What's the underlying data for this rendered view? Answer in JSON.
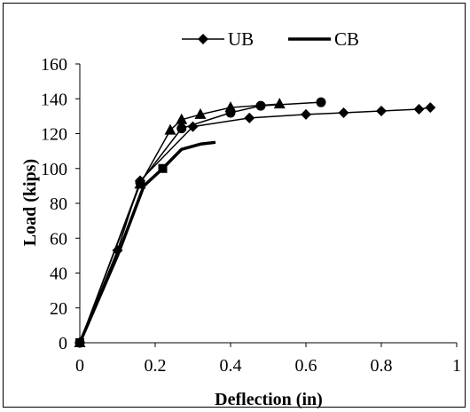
{
  "chart_data": {
    "type": "line",
    "xlabel": "Deflection (in)",
    "ylabel": "Load (kips)",
    "xlim": [
      0,
      1
    ],
    "ylim": [
      0,
      160
    ],
    "xticks": [
      "0",
      "0.2",
      "0.4",
      "0.6",
      "0.8",
      "1"
    ],
    "yticks": [
      "0",
      "20",
      "40",
      "60",
      "80",
      "100",
      "120",
      "140",
      "160"
    ],
    "grid": false,
    "legend_position": "top",
    "series": [
      {
        "name": "UB",
        "marker": "diamond",
        "style": "thin",
        "x": [
          0,
          0.1,
          0.16,
          0.3,
          0.45,
          0.6,
          0.7,
          0.8,
          0.9,
          0.93
        ],
        "y": [
          0,
          53,
          93,
          124,
          129,
          131,
          132,
          133,
          134,
          135
        ]
      },
      {
        "name": "CB",
        "marker": "square",
        "style": "thick",
        "x": [
          0,
          0.1,
          0.17,
          0.22,
          0.27,
          0.32,
          0.36
        ],
        "y": [
          0,
          50,
          90,
          100,
          111,
          114,
          115
        ]
      },
      {
        "name": "",
        "marker": "triangle",
        "style": "thin",
        "x": [
          0,
          0.16,
          0.24,
          0.27,
          0.32,
          0.4,
          0.53
        ],
        "y": [
          0,
          91,
          122,
          128,
          131,
          135,
          137
        ]
      },
      {
        "name": "",
        "marker": "circle",
        "style": "thin",
        "x": [
          0,
          0.16,
          0.27,
          0.4,
          0.48,
          0.64
        ],
        "y": [
          0,
          92,
          123,
          132,
          136,
          138
        ]
      }
    ]
  }
}
